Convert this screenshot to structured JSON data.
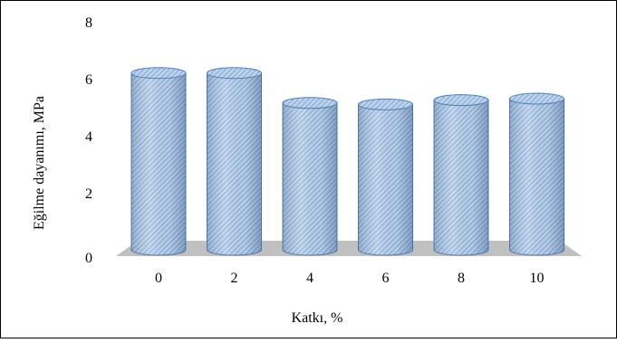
{
  "chart_data": {
    "type": "bar",
    "style": "3d-cylinder",
    "categories": [
      "0",
      "2",
      "4",
      "6",
      "8",
      "10"
    ],
    "values": [
      6.2,
      6.2,
      5.15,
      5.1,
      5.25,
      5.3
    ],
    "ylim": [
      0,
      8
    ],
    "yticks": [
      "0",
      "2",
      "4",
      "6",
      "8"
    ],
    "xlabel": "Katkı, %",
    "ylabel": "Eğilme dayanımı, MPa",
    "grid": false,
    "legend": "none",
    "colors": {
      "bar_fill": "#9fbde0",
      "bar_hatch": "#ffffff",
      "bar_edge": "#4f7db8",
      "floor": "#c0c0c0"
    }
  }
}
